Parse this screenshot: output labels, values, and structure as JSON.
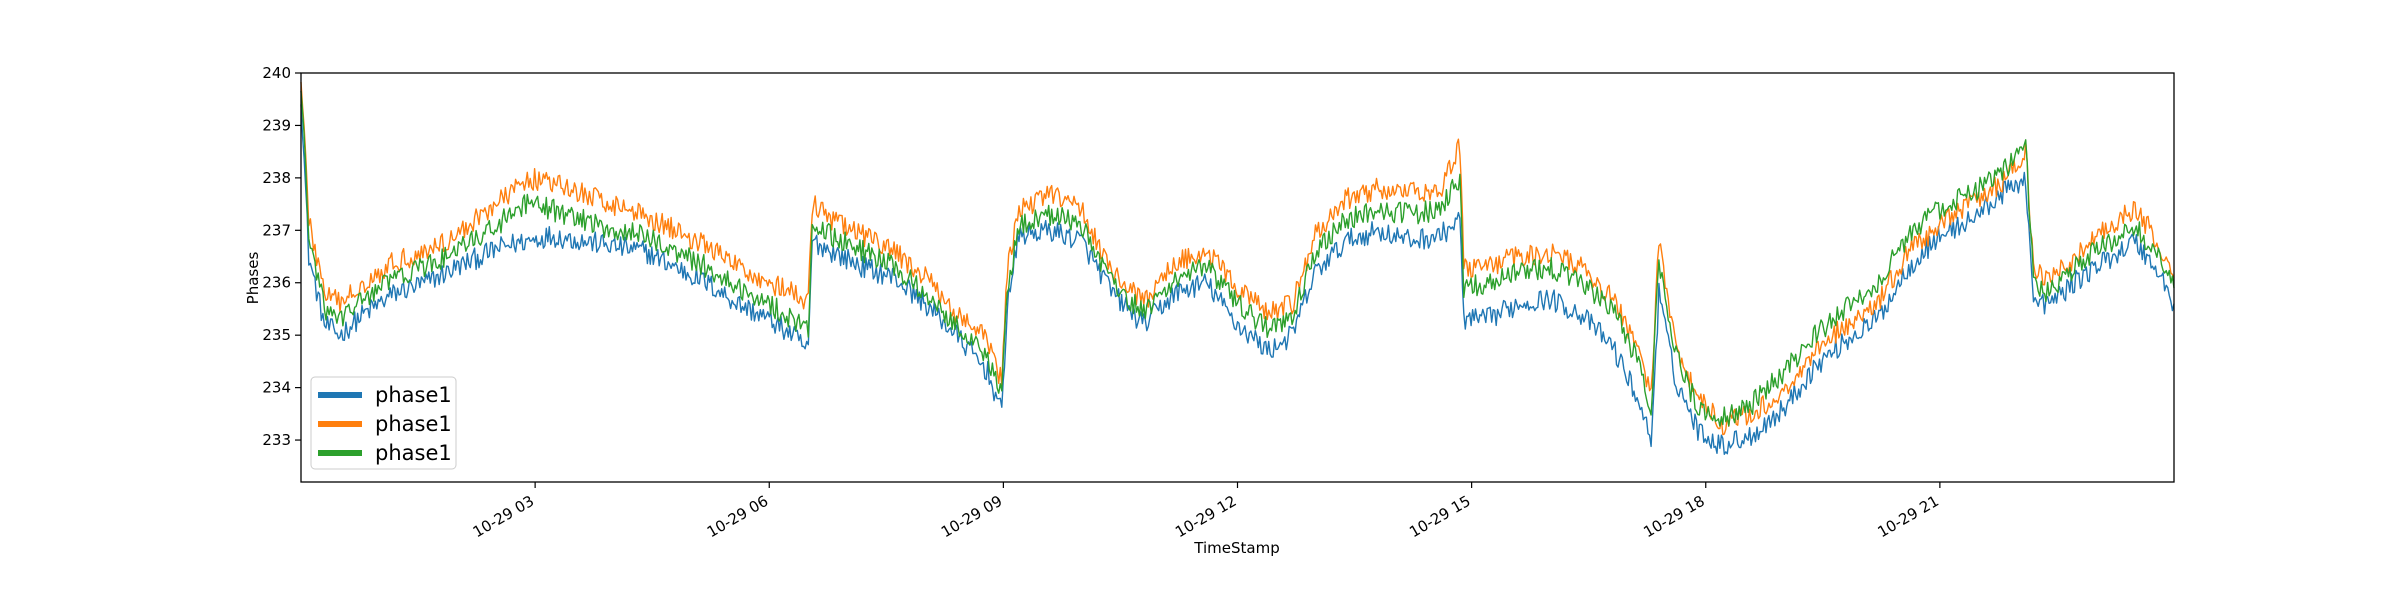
{
  "chart_data": {
    "type": "line",
    "title": "",
    "xlabel": "TimeStamp",
    "ylabel": "Phases",
    "x_range": [
      "10-29 00:00",
      "23:59"
    ],
    "ylim": [
      232.2,
      240.0
    ],
    "yticks": [
      233,
      234,
      235,
      236,
      237,
      238,
      239,
      240
    ],
    "xticks": [
      {
        "t": 3,
        "label": "10-29 03"
      },
      {
        "t": 6,
        "label": "10-29 06"
      },
      {
        "t": 9,
        "label": "10-29 09"
      },
      {
        "t": 12,
        "label": "10-29 12"
      },
      {
        "t": 15,
        "label": "10-29 15"
      },
      {
        "t": 18,
        "label": "10-29 18"
      },
      {
        "t": 21,
        "label": "10-29 21"
      }
    ],
    "grid": false,
    "legend_position": "lower-left",
    "x_unit": "hours since 10-29 00:00",
    "series": [
      {
        "name": "phase1",
        "color": "#1f77b4",
        "points": [
          [
            0,
            239.6
          ],
          [
            0.1,
            236.5
          ],
          [
            0.3,
            235.2
          ],
          [
            0.5,
            235.0
          ],
          [
            0.8,
            235.4
          ],
          [
            1.2,
            235.8
          ],
          [
            1.6,
            236.0
          ],
          [
            2.0,
            236.3
          ],
          [
            2.3,
            236.5
          ],
          [
            2.6,
            236.7
          ],
          [
            2.9,
            236.8
          ],
          [
            3.2,
            236.9
          ],
          [
            3.6,
            236.8
          ],
          [
            4.0,
            236.7
          ],
          [
            4.4,
            236.6
          ],
          [
            4.8,
            236.3
          ],
          [
            5.2,
            236.0
          ],
          [
            5.6,
            235.6
          ],
          [
            6.0,
            235.3
          ],
          [
            6.3,
            235.0
          ],
          [
            6.5,
            234.7
          ],
          [
            6.55,
            236.8
          ],
          [
            6.8,
            236.6
          ],
          [
            7.2,
            236.3
          ],
          [
            7.6,
            236.1
          ],
          [
            8.0,
            235.6
          ],
          [
            8.4,
            235.0
          ],
          [
            8.8,
            234.3
          ],
          [
            8.98,
            233.5
          ],
          [
            9.05,
            235.6
          ],
          [
            9.2,
            236.9
          ],
          [
            9.6,
            237.0
          ],
          [
            10.0,
            236.8
          ],
          [
            10.4,
            235.8
          ],
          [
            10.8,
            235.2
          ],
          [
            11.2,
            235.8
          ],
          [
            11.6,
            236.0
          ],
          [
            12.0,
            235.2
          ],
          [
            12.4,
            234.7
          ],
          [
            12.7,
            235.0
          ],
          [
            13.0,
            236.2
          ],
          [
            13.4,
            236.8
          ],
          [
            13.8,
            237.0
          ],
          [
            14.2,
            236.8
          ],
          [
            14.6,
            236.9
          ],
          [
            14.85,
            237.2
          ],
          [
            14.9,
            235.3
          ],
          [
            15.2,
            235.3
          ],
          [
            15.6,
            235.6
          ],
          [
            16.0,
            235.7
          ],
          [
            16.4,
            235.4
          ],
          [
            16.8,
            234.8
          ],
          [
            17.1,
            233.9
          ],
          [
            17.3,
            233.0
          ],
          [
            17.4,
            235.8
          ],
          [
            17.6,
            234.2
          ],
          [
            17.9,
            233.2
          ],
          [
            18.2,
            232.9
          ],
          [
            18.6,
            233.1
          ],
          [
            19.0,
            233.6
          ],
          [
            19.4,
            234.4
          ],
          [
            19.8,
            234.9
          ],
          [
            20.2,
            235.3
          ],
          [
            20.6,
            236.3
          ],
          [
            21.0,
            236.9
          ],
          [
            21.4,
            237.2
          ],
          [
            21.8,
            237.7
          ],
          [
            22.1,
            238.0
          ],
          [
            22.2,
            235.6
          ],
          [
            22.4,
            235.6
          ],
          [
            22.8,
            236.1
          ],
          [
            23.2,
            236.5
          ],
          [
            23.5,
            236.8
          ],
          [
            23.8,
            236.2
          ],
          [
            24.0,
            235.6
          ]
        ]
      },
      {
        "name": "phase1",
        "color": "#ff7f0e",
        "points": [
          [
            0,
            240.0
          ],
          [
            0.1,
            237.2
          ],
          [
            0.3,
            235.8
          ],
          [
            0.5,
            235.6
          ],
          [
            0.8,
            236.0
          ],
          [
            1.2,
            236.4
          ],
          [
            1.6,
            236.6
          ],
          [
            2.0,
            236.9
          ],
          [
            2.3,
            237.3
          ],
          [
            2.6,
            237.6
          ],
          [
            2.9,
            238.0
          ],
          [
            3.2,
            237.9
          ],
          [
            3.6,
            237.7
          ],
          [
            4.0,
            237.5
          ],
          [
            4.4,
            237.3
          ],
          [
            4.8,
            237.0
          ],
          [
            5.2,
            236.7
          ],
          [
            5.6,
            236.3
          ],
          [
            6.0,
            236.0
          ],
          [
            6.3,
            235.8
          ],
          [
            6.5,
            235.6
          ],
          [
            6.55,
            237.5
          ],
          [
            6.8,
            237.2
          ],
          [
            7.2,
            236.9
          ],
          [
            7.6,
            236.6
          ],
          [
            8.0,
            236.1
          ],
          [
            8.4,
            235.4
          ],
          [
            8.8,
            234.9
          ],
          [
            8.98,
            234.1
          ],
          [
            9.05,
            236.2
          ],
          [
            9.2,
            237.4
          ],
          [
            9.6,
            237.7
          ],
          [
            10.0,
            237.4
          ],
          [
            10.4,
            236.2
          ],
          [
            10.8,
            235.6
          ],
          [
            11.2,
            236.4
          ],
          [
            11.6,
            236.6
          ],
          [
            12.0,
            235.9
          ],
          [
            12.4,
            235.4
          ],
          [
            12.7,
            235.6
          ],
          [
            13.0,
            236.9
          ],
          [
            13.4,
            237.6
          ],
          [
            13.8,
            237.8
          ],
          [
            14.2,
            237.7
          ],
          [
            14.6,
            237.8
          ],
          [
            14.85,
            238.6
          ],
          [
            14.9,
            236.3
          ],
          [
            15.2,
            236.3
          ],
          [
            15.6,
            236.5
          ],
          [
            16.0,
            236.6
          ],
          [
            16.4,
            236.3
          ],
          [
            16.8,
            235.7
          ],
          [
            17.1,
            234.9
          ],
          [
            17.3,
            233.9
          ],
          [
            17.4,
            236.8
          ],
          [
            17.6,
            234.9
          ],
          [
            17.9,
            233.8
          ],
          [
            18.2,
            233.3
          ],
          [
            18.6,
            233.5
          ],
          [
            19.0,
            233.9
          ],
          [
            19.4,
            234.7
          ],
          [
            19.8,
            235.2
          ],
          [
            20.2,
            235.6
          ],
          [
            20.6,
            236.6
          ],
          [
            21.0,
            237.1
          ],
          [
            21.4,
            237.5
          ],
          [
            21.8,
            237.9
          ],
          [
            22.1,
            238.5
          ],
          [
            22.2,
            236.3
          ],
          [
            22.4,
            236.0
          ],
          [
            22.8,
            236.6
          ],
          [
            23.2,
            237.1
          ],
          [
            23.5,
            237.4
          ],
          [
            23.8,
            236.8
          ],
          [
            24.0,
            236.1
          ]
        ]
      },
      {
        "name": "phase1",
        "color": "#2ca02c",
        "points": [
          [
            0,
            239.8
          ],
          [
            0.1,
            236.9
          ],
          [
            0.3,
            235.5
          ],
          [
            0.5,
            235.3
          ],
          [
            0.8,
            235.7
          ],
          [
            1.2,
            236.1
          ],
          [
            1.6,
            236.3
          ],
          [
            2.0,
            236.6
          ],
          [
            2.3,
            236.9
          ],
          [
            2.6,
            237.2
          ],
          [
            2.9,
            237.5
          ],
          [
            3.2,
            237.4
          ],
          [
            3.6,
            237.2
          ],
          [
            4.0,
            237.0
          ],
          [
            4.4,
            236.9
          ],
          [
            4.8,
            236.6
          ],
          [
            5.2,
            236.3
          ],
          [
            5.6,
            235.9
          ],
          [
            6.0,
            235.6
          ],
          [
            6.3,
            235.3
          ],
          [
            6.5,
            235.1
          ],
          [
            6.55,
            237.1
          ],
          [
            6.8,
            236.9
          ],
          [
            7.2,
            236.6
          ],
          [
            7.6,
            236.3
          ],
          [
            8.0,
            235.8
          ],
          [
            8.4,
            235.2
          ],
          [
            8.8,
            234.6
          ],
          [
            8.98,
            233.8
          ],
          [
            9.05,
            235.9
          ],
          [
            9.2,
            237.1
          ],
          [
            9.6,
            237.3
          ],
          [
            10.0,
            237.1
          ],
          [
            10.4,
            236.0
          ],
          [
            10.8,
            235.4
          ],
          [
            11.2,
            236.1
          ],
          [
            11.6,
            236.3
          ],
          [
            12.0,
            235.6
          ],
          [
            12.4,
            235.1
          ],
          [
            12.7,
            235.3
          ],
          [
            13.0,
            236.6
          ],
          [
            13.4,
            237.2
          ],
          [
            13.8,
            237.4
          ],
          [
            14.2,
            237.3
          ],
          [
            14.6,
            237.4
          ],
          [
            14.85,
            238.0
          ],
          [
            14.9,
            235.9
          ],
          [
            15.2,
            236.0
          ],
          [
            15.6,
            236.2
          ],
          [
            16.0,
            236.3
          ],
          [
            16.4,
            236.0
          ],
          [
            16.8,
            235.5
          ],
          [
            17.1,
            234.6
          ],
          [
            17.3,
            233.6
          ],
          [
            17.4,
            236.4
          ],
          [
            17.6,
            234.7
          ],
          [
            17.9,
            233.6
          ],
          [
            18.2,
            233.4
          ],
          [
            18.6,
            233.7
          ],
          [
            19.0,
            234.3
          ],
          [
            19.4,
            235.0
          ],
          [
            19.8,
            235.5
          ],
          [
            20.2,
            236.0
          ],
          [
            20.6,
            236.9
          ],
          [
            21.0,
            237.4
          ],
          [
            21.4,
            237.7
          ],
          [
            21.8,
            238.1
          ],
          [
            22.1,
            238.6
          ],
          [
            22.2,
            236.0
          ],
          [
            22.4,
            235.8
          ],
          [
            22.8,
            236.4
          ],
          [
            23.2,
            236.8
          ],
          [
            23.5,
            237.1
          ],
          [
            23.8,
            236.5
          ],
          [
            24.0,
            235.9
          ]
        ]
      }
    ]
  }
}
